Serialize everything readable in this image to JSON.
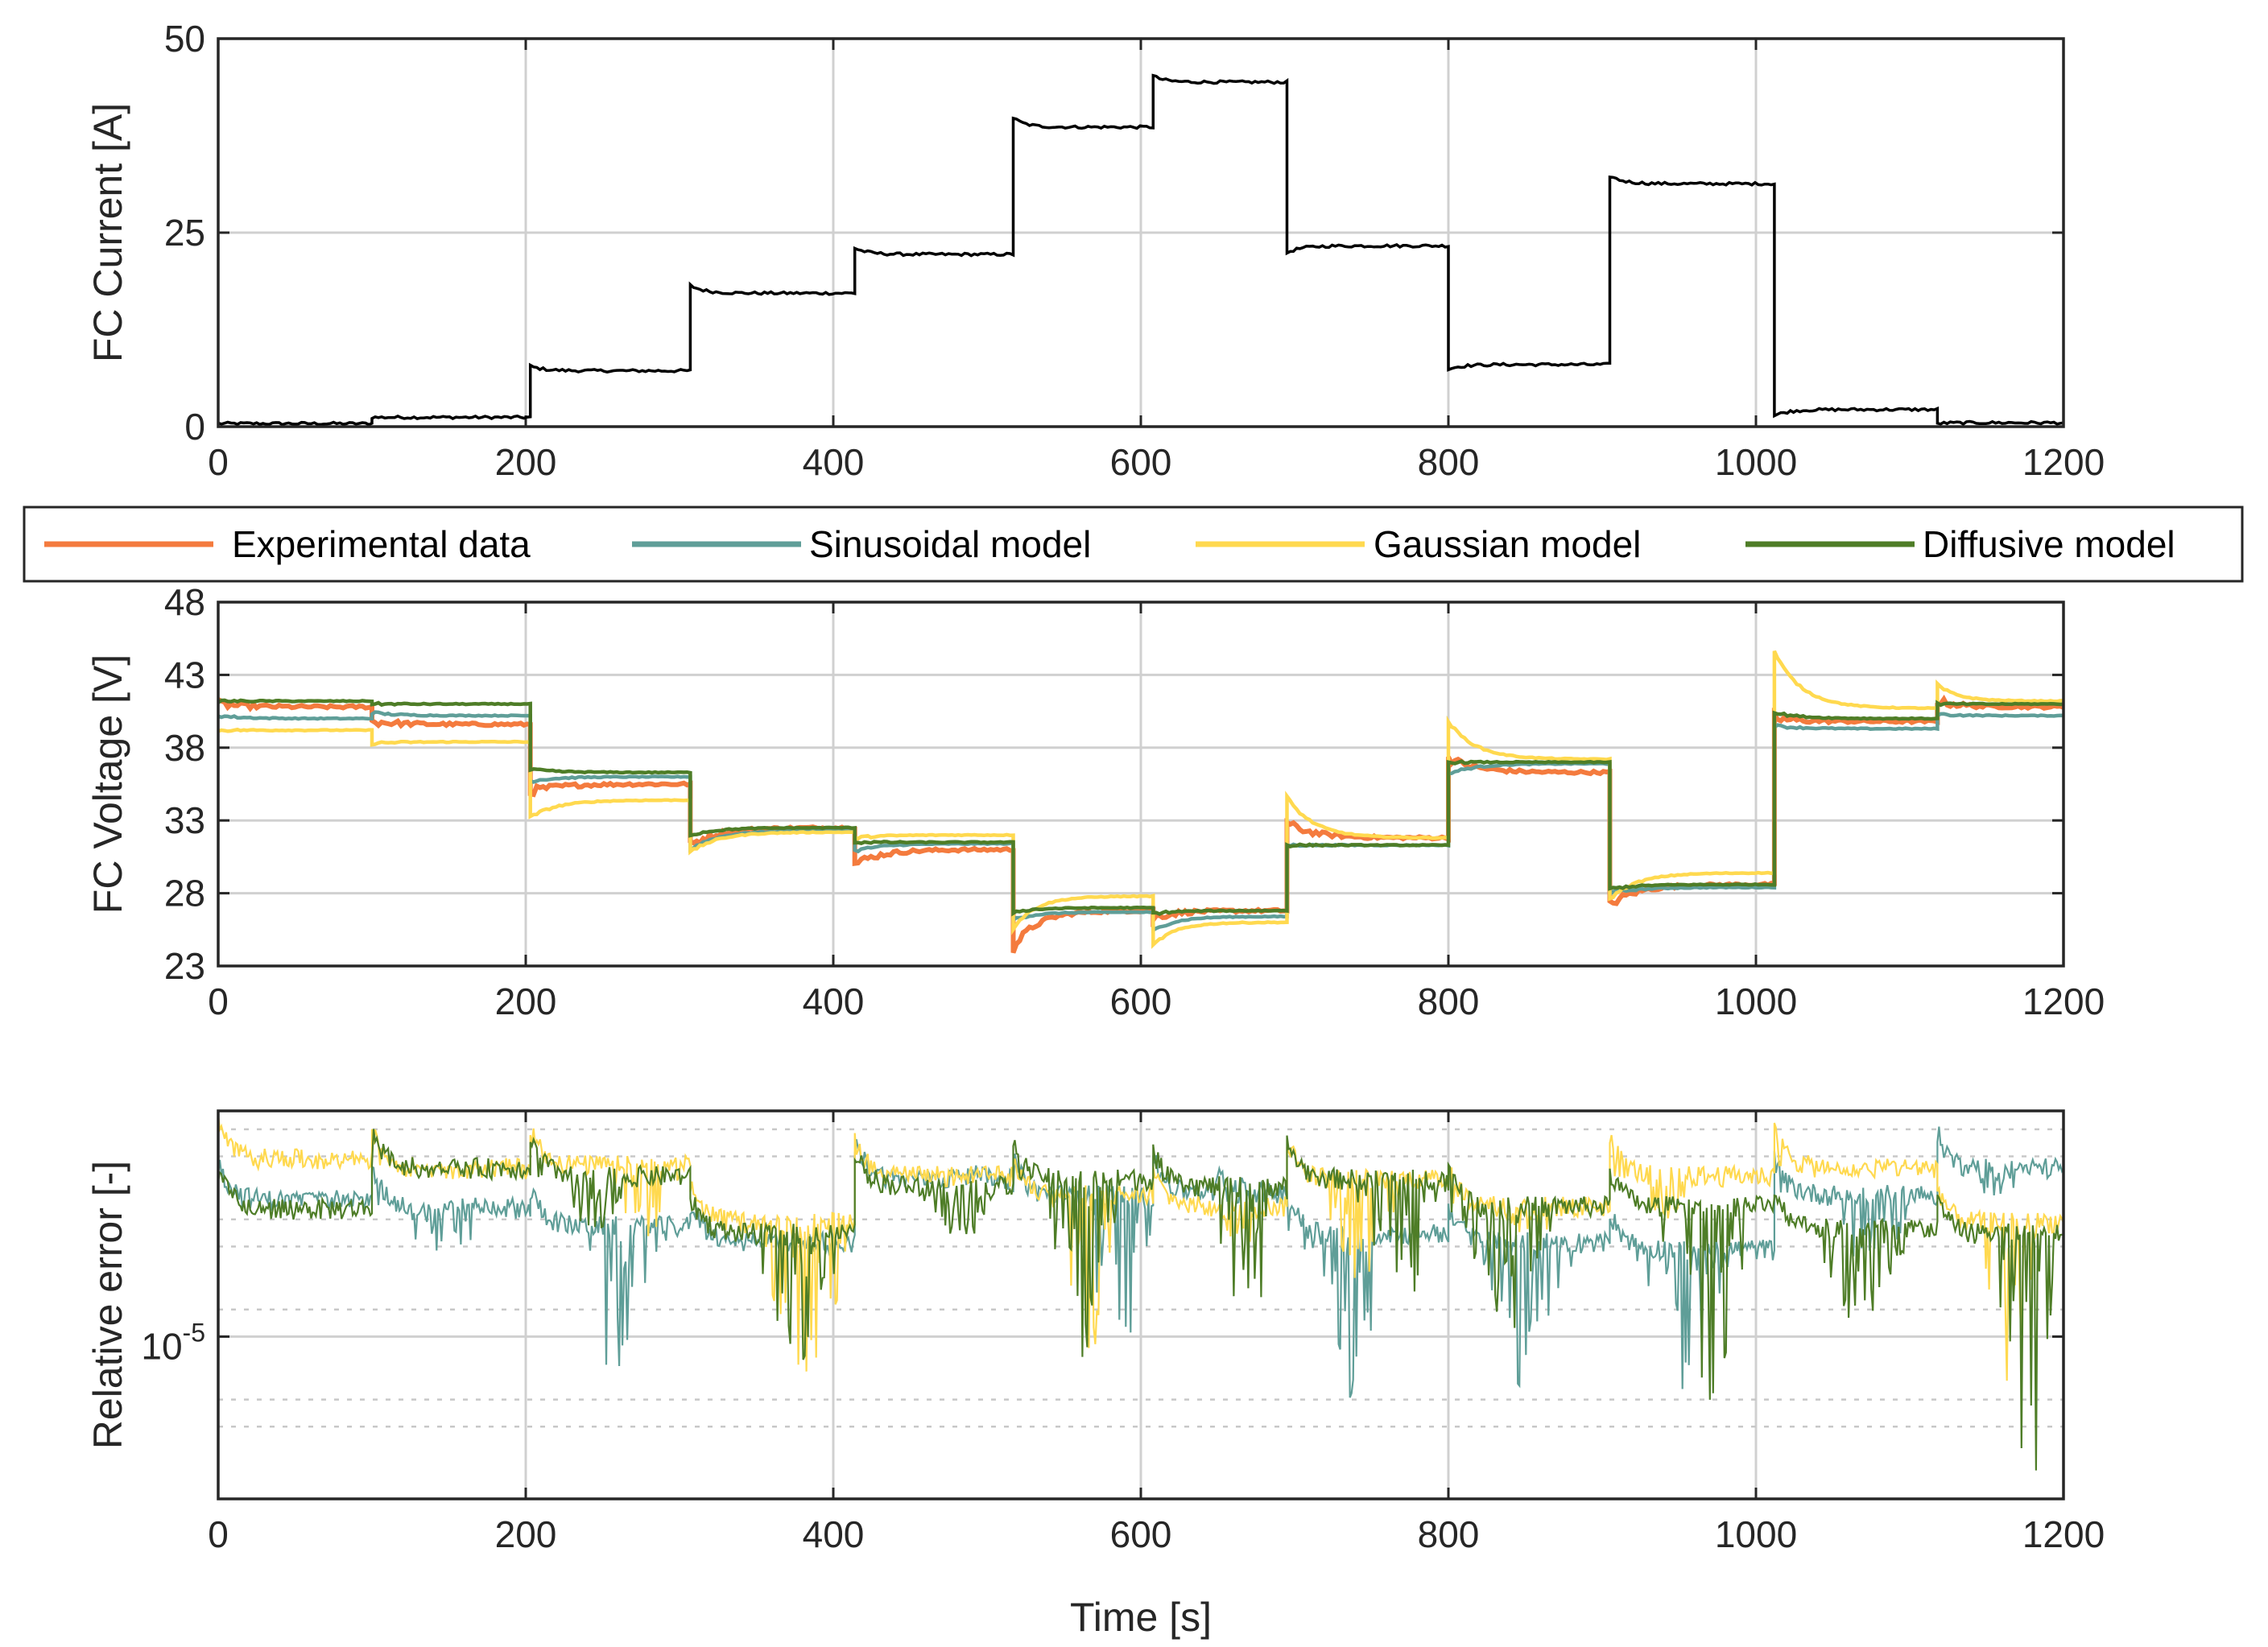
{
  "chart_data": [
    {
      "id": "current",
      "type": "line",
      "title": "",
      "xlabel": "",
      "ylabel": "FC Current [A]",
      "xlim": [
        0,
        1200
      ],
      "ylim": [
        0,
        50
      ],
      "xticks": [
        0,
        200,
        400,
        600,
        800,
        1000,
        1200
      ],
      "yticks": [
        0,
        25,
        50
      ],
      "grid": true,
      "series": [
        {
          "color": "#000000",
          "steps": [
            {
              "t0": 0,
              "t1": 100,
              "v": 0.4,
              "peak": 0.4
            },
            {
              "t0": 100,
              "t1": 203,
              "v": 1.2,
              "peak": 1.2
            },
            {
              "t0": 203,
              "t1": 307,
              "v": 7.2,
              "peak": 7.8
            },
            {
              "t0": 307,
              "t1": 414,
              "v": 17.2,
              "peak": 18.2
            },
            {
              "t0": 414,
              "t1": 517,
              "v": 22.2,
              "peak": 23.0
            },
            {
              "t0": 517,
              "t1": 608,
              "v": 38.6,
              "peak": 39.8
            },
            {
              "t0": 608,
              "t1": 695,
              "v": 44.4,
              "peak": 45.2
            },
            {
              "t0": 695,
              "t1": 800,
              "v": 23.3,
              "peak": 22.4
            },
            {
              "t0": 800,
              "t1": 905,
              "v": 8.0,
              "peak": 7.4
            },
            {
              "t0": 905,
              "t1": 1012,
              "v": 31.3,
              "peak": 32.3
            },
            {
              "t0": 1012,
              "t1": 1118,
              "v": 2.2,
              "peak": 1.4
            },
            {
              "t0": 1118,
              "t1": 1200,
              "v": 0.5,
              "peak": 0.4
            }
          ]
        }
      ]
    },
    {
      "id": "voltage",
      "type": "line",
      "title": "",
      "xlabel": "",
      "ylabel": "FC Voltage [V]",
      "xlim": [
        0,
        1200
      ],
      "ylim": [
        23,
        48
      ],
      "xticks": [
        0,
        200,
        400,
        600,
        800,
        1000,
        1200
      ],
      "yticks": [
        23,
        28,
        33,
        38,
        43,
        48
      ],
      "grid": true,
      "legend": {
        "placement": "top",
        "orientation": "horizontal"
      },
      "step_times": [
        0,
        100,
        203,
        307,
        414,
        517,
        608,
        695,
        800,
        905,
        1012,
        1118,
        1200
      ],
      "series": [
        {
          "name": "Experimental data",
          "color": "#F47B3E",
          "segments": [
            [
              41.0,
              40.8
            ],
            [
              39.8,
              39.6
            ],
            [
              35.0,
              35.5
            ],
            [
              31.3,
              32.5
            ],
            [
              30.0,
              31.0
            ],
            [
              24.2,
              26.8
            ],
            [
              26.3,
              26.8
            ],
            [
              32.8,
              31.8
            ],
            [
              37.3,
              36.3
            ],
            [
              27.2,
              28.6
            ],
            [
              40.0,
              39.8
            ],
            [
              41.2,
              40.8
            ]
          ]
        },
        {
          "name": "Sinusoidal model",
          "color": "#5F9E98",
          "segments": [
            [
              40.2,
              40.0
            ],
            [
              40.4,
              40.2
            ],
            [
              35.7,
              36.0
            ],
            [
              31.0,
              32.3
            ],
            [
              30.9,
              31.4
            ],
            [
              26.2,
              26.7
            ],
            [
              25.4,
              26.4
            ],
            [
              31.3,
              31.3
            ],
            [
              36.2,
              36.9
            ],
            [
              28.0,
              28.4
            ],
            [
              39.5,
              39.3
            ],
            [
              40.3,
              40.2
            ]
          ]
        },
        {
          "name": "Gaussian model",
          "color": "#FFD94F",
          "segments": [
            [
              39.2,
              39.2
            ],
            [
              38.3,
              38.4
            ],
            [
              33.2,
              34.4
            ],
            [
              30.8,
              32.2
            ],
            [
              31.8,
              32.0
            ],
            [
              25.6,
              27.8
            ],
            [
              24.4,
              26.0
            ],
            [
              34.6,
              31.8
            ],
            [
              39.8,
              37.2
            ],
            [
              27.6,
              29.4
            ],
            [
              44.6,
              40.7
            ],
            [
              42.3,
              41.2
            ]
          ]
        },
        {
          "name": "Diffusive model",
          "color": "#4E7D27",
          "segments": [
            [
              41.2,
              41.2
            ],
            [
              41.0,
              41.0
            ],
            [
              36.5,
              36.3
            ],
            [
              32.0,
              32.5
            ],
            [
              31.5,
              31.5
            ],
            [
              26.7,
              27.0
            ],
            [
              26.6,
              26.8
            ],
            [
              31.3,
              31.3
            ],
            [
              37.0,
              37.0
            ],
            [
              28.3,
              28.6
            ],
            [
              40.4,
              40.0
            ],
            [
              41.0,
              41.0
            ]
          ]
        }
      ]
    },
    {
      "id": "error",
      "type": "line",
      "title": "",
      "xlabel": "Time [s]",
      "ylabel": "Relative error [-]",
      "xlim": [
        0,
        1200
      ],
      "yscale": "log",
      "ylim": [
        1.58e-07,
        0.0032
      ],
      "xticks": [
        0,
        200,
        400,
        600,
        800,
        1000,
        1200
      ],
      "ytick_major": {
        "value": 1e-05,
        "base": "10",
        "exponent": "-5"
      },
      "yminor_grid": [
        1e-06,
        2e-06,
        2e-05,
        0.0001,
        0.0002,
        0.001,
        0.002
      ],
      "grid": true,
      "series": [
        {
          "name": "Sinusoidal model",
          "color": "#5F9E98",
          "base_level": [
            0.00035,
            0.00029,
            0.00018,
            0.00012,
            0.0006,
            0.0004,
            0.00042,
            0.00015,
            0.00012,
            0.0001,
            0.0004,
            0.0008
          ],
          "dip_min": [
            0.0004,
            5e-05,
            2.5e-06,
            0.0001,
            0.0008,
            3e-06,
            0.0008,
            1.7e-06,
            2e-06,
            2.5e-06,
            5e-05,
            0.0003
          ]
        },
        {
          "name": "Gaussian model",
          "color": "#FFD94F",
          "base_level": [
            0.001,
            0.0008,
            0.00085,
            0.0002,
            0.00065,
            0.0004,
            0.0003,
            0.0006,
            0.0003,
            0.00065,
            0.0008,
            0.0002
          ],
          "dip_min": [
            0.0008,
            0.0007,
            0.0001,
            2e-06,
            0.0005,
            5e-06,
            0.0001,
            3e-05,
            0.0001,
            0.0002,
            0.0006,
            3e-06
          ]
        },
        {
          "name": "Diffusive model",
          "color": "#4E7D27",
          "base_level": [
            0.00028,
            0.0008,
            0.00065,
            0.00015,
            0.0005,
            0.0006,
            0.0005,
            0.0006,
            0.0003,
            0.0003,
            0.00017,
            0.00015
          ],
          "dip_min": [
            0.0002,
            0.0006,
            0.00015,
            3e-06,
            0.0001,
            4e-06,
            1e-05,
            1.8e-05,
            1e-05,
            1.8e-06,
            8e-06,
            1.7e-07
          ]
        }
      ]
    }
  ]
}
